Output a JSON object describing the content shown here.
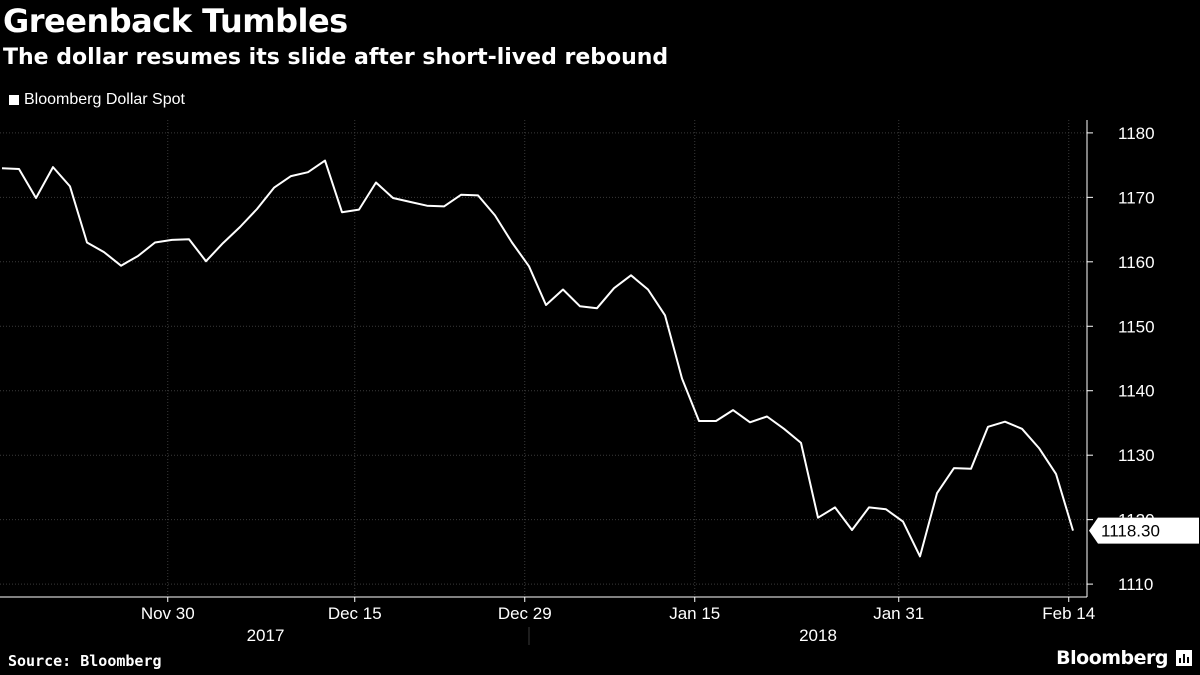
{
  "header": {
    "title": "Greenback Tumbles",
    "subtitle": "The dollar resumes its slide after short-lived rebound"
  },
  "legend": {
    "label": "Bloomberg Dollar Spot"
  },
  "footer": {
    "source": "Source: Bloomberg",
    "brand": "Bloomberg",
    "brand_icon": "bloomberg-chart-icon"
  },
  "colors": {
    "background": "#000000",
    "line": "#ffffff",
    "grid": "#3a3a3a",
    "axis": "#ffffff"
  },
  "chart_data": {
    "type": "line",
    "title": "Greenback Tumbles",
    "subtitle": "The dollar resumes its slide after short-lived rebound",
    "series": [
      {
        "name": "Bloomberg Dollar Spot",
        "last_value_label": "1118.30",
        "points": [
          [
            "2017-11-21",
            1174.5
          ],
          [
            "2017-11-22",
            1174.4
          ],
          [
            "2017-11-23",
            1169.9
          ],
          [
            "2017-11-24",
            1174.7
          ],
          [
            "2017-11-25",
            1171.7
          ],
          [
            "2017-11-26",
            1163.0
          ],
          [
            "2017-11-27",
            1161.5
          ],
          [
            "2017-11-28",
            1159.4
          ],
          [
            "2017-11-29",
            1160.9
          ],
          [
            "2017-11-30",
            1163.0
          ],
          [
            "2017-12-01",
            1163.4
          ],
          [
            "2017-12-02",
            1163.5
          ],
          [
            "2017-12-03",
            1160.1
          ],
          [
            "2017-12-04",
            1162.9
          ],
          [
            "2017-12-05",
            1165.4
          ],
          [
            "2017-12-06",
            1168.2
          ],
          [
            "2017-12-07",
            1171.5
          ],
          [
            "2017-12-08",
            1173.3
          ],
          [
            "2017-12-09",
            1173.9
          ],
          [
            "2017-12-10",
            1175.7
          ],
          [
            "2017-12-11",
            1167.7
          ],
          [
            "2017-12-12",
            1168.1
          ],
          [
            "2017-12-13",
            1172.3
          ],
          [
            "2017-12-14",
            1169.9
          ],
          [
            "2017-12-15",
            1169.3
          ],
          [
            "2017-12-16",
            1168.7
          ],
          [
            "2017-12-17",
            1168.6
          ],
          [
            "2017-12-18",
            1170.4
          ],
          [
            "2017-12-19",
            1170.3
          ],
          [
            "2017-12-20",
            1167.2
          ],
          [
            "2017-12-21",
            1163.0
          ],
          [
            "2017-12-22",
            1159.3
          ],
          [
            "2017-12-23",
            1153.3
          ],
          [
            "2017-12-24",
            1155.7
          ],
          [
            "2017-12-25",
            1153.1
          ],
          [
            "2017-12-26",
            1152.8
          ],
          [
            "2017-12-27",
            1155.9
          ],
          [
            "2017-12-28",
            1157.9
          ],
          [
            "2017-12-29",
            1155.7
          ],
          [
            "2017-12-30",
            1151.7
          ],
          [
            "2017-12-31",
            1141.9
          ],
          [
            "2018-01-01",
            1135.3
          ],
          [
            "2018-01-02",
            1135.3
          ],
          [
            "2018-01-03",
            1137.0
          ],
          [
            "2018-01-04",
            1135.1
          ],
          [
            "2018-01-05",
            1136.0
          ],
          [
            "2018-01-06",
            1134.1
          ],
          [
            "2018-01-07",
            1131.9
          ],
          [
            "2018-01-08",
            1120.3
          ],
          [
            "2018-01-09",
            1121.9
          ],
          [
            "2018-01-10",
            1118.4
          ],
          [
            "2018-01-11",
            1121.9
          ],
          [
            "2018-01-12",
            1121.6
          ],
          [
            "2018-01-13",
            1119.7
          ],
          [
            "2018-01-14",
            1114.3
          ],
          [
            "2018-01-15",
            1124.1
          ],
          [
            "2018-01-16",
            1128.0
          ],
          [
            "2018-01-17",
            1127.9
          ],
          [
            "2018-01-18",
            1134.4
          ],
          [
            "2018-01-19",
            1135.2
          ],
          [
            "2018-01-20",
            1134.1
          ],
          [
            "2018-01-21",
            1131.1
          ],
          [
            "2018-01-22",
            1127.1
          ],
          [
            "2018-01-23",
            1118.3
          ]
        ]
      }
    ],
    "x_tick_labels": [
      "Nov 30",
      "Dec 15",
      "Dec 29",
      "Jan 15",
      "Jan 31",
      "Feb 14"
    ],
    "x_tick_index": [
      9.75,
      20.75,
      30.75,
      40.75,
      52.75,
      62.75
    ],
    "x_group_labels": [
      "2017",
      "2018"
    ],
    "y_ticks": [
      1110,
      1120,
      1130,
      1140,
      1150,
      1160,
      1170,
      1180
    ],
    "y_tick_labels": [
      "1110",
      "1120",
      "1130",
      "1140",
      "1150",
      "1160",
      "1170",
      "1180"
    ],
    "ylim": [
      1108,
      1182
    ],
    "grid": "vertical and horizontal dotted",
    "y_axis_side": "right",
    "xlabel": "",
    "ylabel": ""
  }
}
